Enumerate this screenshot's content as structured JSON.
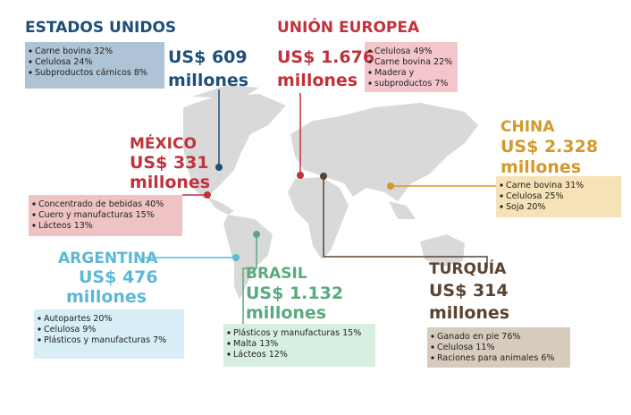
{
  "regions": [
    {
      "name": "ESTADOS UNIDOS",
      "amount": "US$ 609",
      "unit": "millones",
      "items": [
        "Carne bovina 32%",
        "Celulosa 24%",
        "Subproductos cárnicos 8%"
      ]
    },
    {
      "name": "UNIÓN EUROPEA",
      "amount": "US$ 1.676",
      "unit": "millones",
      "items": [
        "Celulosa 49%",
        "Carne bovina 22%",
        "Madera y",
        "subproductos 7%"
      ]
    },
    {
      "name": "CHINA",
      "amount": "US$ 2.328",
      "unit": "millones",
      "items": [
        "Carne bovina 31%",
        "Celulosa 25%",
        "Soja 20%"
      ]
    },
    {
      "name": "MÉXICO",
      "amount": "US$ 331",
      "unit": "millones",
      "items": [
        "Concentrado de bebidas 40%",
        "Cuero y manufacturas 15%",
        "Lácteos 13%"
      ]
    },
    {
      "name": "ARGENTINA",
      "amount": "US$ 476",
      "unit": "millones",
      "items": [
        "Autopartes 20%",
        "Celulosa 9%",
        "Plásticos y manufacturas 7%"
      ]
    },
    {
      "name": "BRASIL",
      "amount": "US$ 1.132",
      "unit": "millones",
      "items": [
        "Plásticos y manufacturas 15%",
        "Malta 13%",
        "Lácteos 12%"
      ]
    },
    {
      "name": "TURQUÍA",
      "amount": "US$ 314",
      "unit": "millones",
      "items": [
        "Ganado en pie 76%",
        "Celulosa 11%",
        "Raciones para animales 6%"
      ]
    }
  ]
}
